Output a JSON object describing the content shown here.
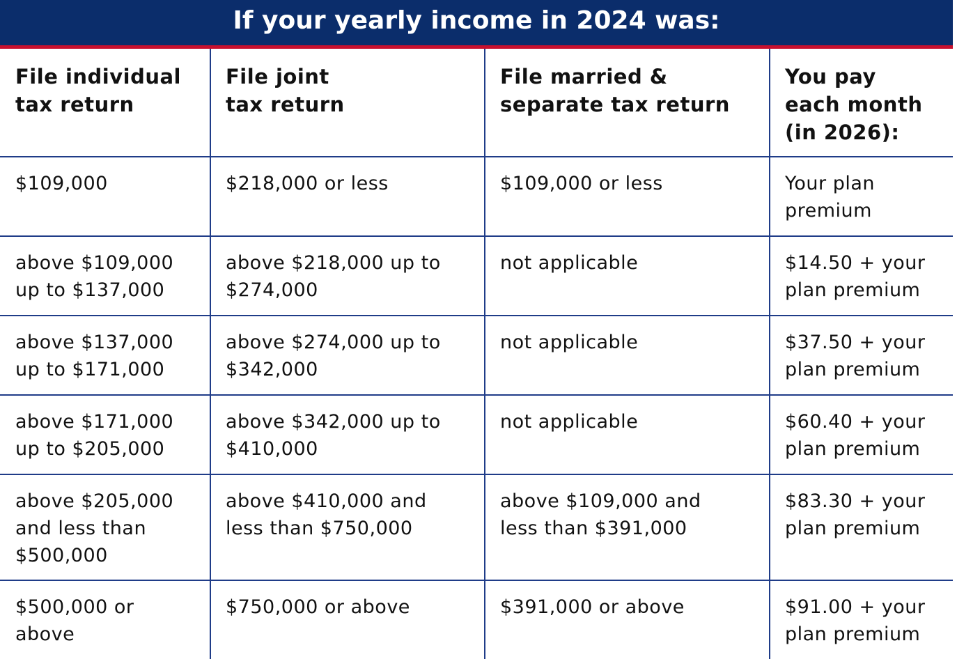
{
  "header": {
    "title": "If your yearly income in 2024 was:"
  },
  "table": {
    "columns": [
      [
        "File individual",
        "tax return"
      ],
      [
        "File joint",
        "tax return"
      ],
      [
        "File married &",
        "separate tax return"
      ],
      [
        "You pay",
        "each month",
        "(in 2026):"
      ]
    ],
    "rows": [
      [
        [
          "$109,000"
        ],
        [
          "$218,000 or less"
        ],
        [
          "$109,000 or less"
        ],
        [
          "Your plan",
          "premium"
        ]
      ],
      [
        [
          "above $109,000",
          "up to $137,000"
        ],
        [
          "above $218,000 up to",
          "$274,000"
        ],
        [
          "not applicable"
        ],
        [
          "$14.50 + your",
          "plan premium"
        ]
      ],
      [
        [
          "above $137,000",
          "up to $171,000"
        ],
        [
          "above $274,000 up to",
          "$342,000"
        ],
        [
          "not applicable"
        ],
        [
          "$37.50 + your",
          "plan premium"
        ]
      ],
      [
        [
          "above $171,000",
          "up to $205,000"
        ],
        [
          "above $342,000 up to",
          "$410,000"
        ],
        [
          "not applicable"
        ],
        [
          "$60.40 + your",
          "plan premium"
        ]
      ],
      [
        [
          "above $205,000",
          "and less than",
          "$500,000"
        ],
        [
          "above $410,000 and",
          "less than $750,000"
        ],
        [
          "above $109,000 and",
          "less than $391,000"
        ],
        [
          "$83.30 + your",
          "plan premium"
        ]
      ],
      [
        [
          "$500,000 or",
          "above"
        ],
        [
          "$750,000 or above"
        ],
        [
          "$391,000 or above"
        ],
        [
          "$91.00 + your",
          "plan premium"
        ]
      ]
    ]
  }
}
